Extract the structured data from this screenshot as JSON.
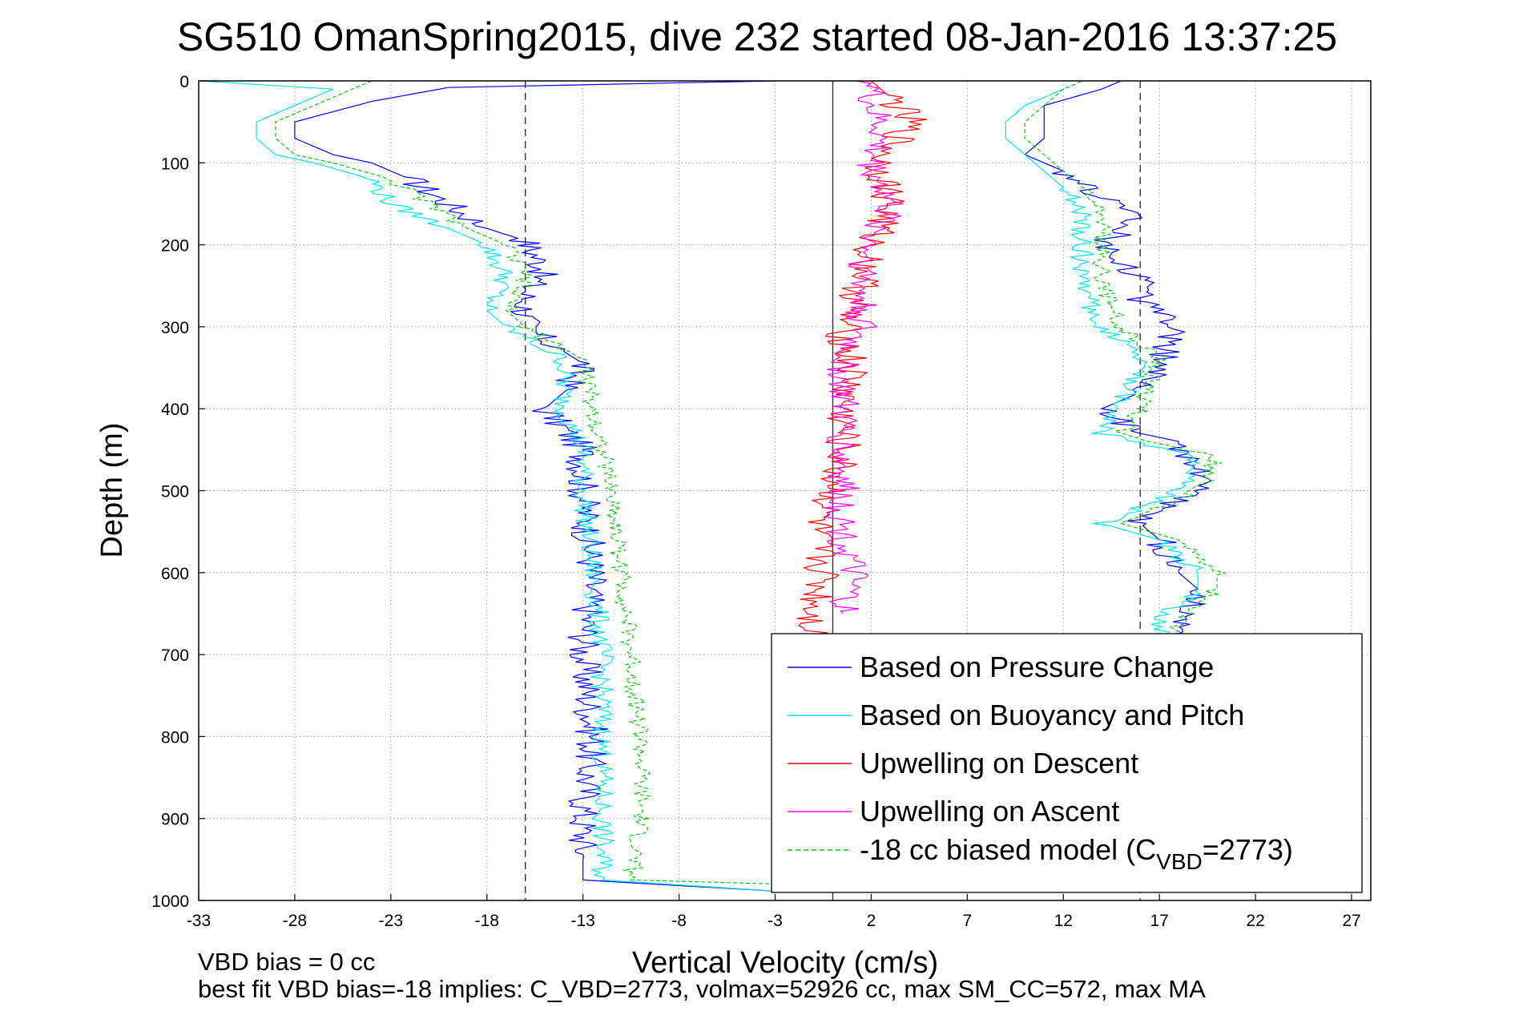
{
  "chart_data": {
    "type": "line",
    "title": "SG510 OmanSpring2015, dive 232 started 08-Jan-2016 13:37:25",
    "xlabel": "Vertical Velocity (cm/s)",
    "ylabel": "Depth (m)",
    "xlim": [
      -33,
      28
    ],
    "ylim": [
      1000,
      0
    ],
    "y_reversed": true,
    "grid": true,
    "x_ticks": [
      "-33",
      "-28",
      "-23",
      "-18",
      "-13",
      "-8",
      "-3",
      "2",
      "7",
      "12",
      "17",
      "22",
      "27"
    ],
    "x_tick_values": [
      -33,
      -28,
      -23,
      -18,
      -13,
      -8,
      -3,
      2,
      7,
      12,
      17,
      22,
      27
    ],
    "y_ticks": [
      "0",
      "100",
      "200",
      "300",
      "400",
      "500",
      "600",
      "700",
      "800",
      "900",
      "1000"
    ],
    "y_tick_values": [
      0,
      100,
      200,
      300,
      400,
      500,
      600,
      700,
      800,
      900,
      1000
    ],
    "reference_lines": [
      {
        "x": -16,
        "style": "dashed"
      },
      {
        "x": 0,
        "style": "solid"
      },
      {
        "x": 16,
        "style": "dashed"
      }
    ],
    "legend_position": "bottom-right",
    "legend": [
      {
        "label": "Based on Pressure Change",
        "color": "#0000ff",
        "dash": false
      },
      {
        "label": "Based on Buoyancy and Pitch",
        "color": "#00e5ee",
        "dash": false
      },
      {
        "label": "Upwelling on Descent",
        "color": "#ff0000",
        "dash": false
      },
      {
        "label": "Upwelling on Ascent",
        "color": "#ff00ff",
        "dash": false
      },
      {
        "label": "-18 cc biased model (C",
        "sub": "VBD",
        "suffix": "=2773)",
        "color": "#00cc00",
        "dash": true
      }
    ],
    "series": [
      {
        "name": "Based on Pressure Change",
        "color": "#0000ff",
        "depth": [
          0,
          8,
          25,
          50,
          70,
          90,
          100,
          120,
          150,
          180,
          195,
          230,
          260,
          300,
          330,
          345,
          380,
          400,
          450,
          500,
          600,
          700,
          800,
          900,
          950,
          975,
          990
        ],
        "values": [
          -3,
          -20,
          -24,
          -28,
          -28,
          -26,
          -24,
          -22,
          -20,
          -18,
          -16,
          -15,
          -16,
          -16,
          -14,
          -13,
          -14,
          -15,
          -13,
          -13,
          -12.5,
          -13,
          -12.5,
          -13,
          -13,
          -13,
          -2
        ]
      },
      {
        "name": "Based on Pressure Change",
        "color": "#0000ff",
        "depth": [
          990,
          985,
          970,
          950,
          900,
          800,
          700,
          660,
          620,
          600,
          560,
          540,
          500,
          470,
          440,
          430,
          400,
          380,
          340,
          300,
          270,
          240,
          200,
          170,
          140,
          110,
          90,
          70,
          50,
          30,
          10,
          0
        ],
        "values": [
          13,
          17,
          17,
          18,
          18,
          18,
          18,
          18,
          19,
          18,
          17,
          16,
          19,
          19,
          18,
          16,
          14,
          16,
          17,
          18,
          16,
          16,
          14,
          16,
          14,
          12,
          10,
          11,
          11,
          11,
          14,
          15
        ]
      },
      {
        "name": "Based on Buoyancy and Pitch",
        "color": "#00e5ee",
        "depth": [
          0,
          10,
          30,
          50,
          70,
          90,
          100,
          120,
          150,
          180,
          200,
          240,
          280,
          300,
          340,
          400,
          450,
          500,
          600,
          700,
          800,
          900,
          975,
          990
        ],
        "values": [
          -33,
          -26,
          -28,
          -30,
          -30,
          -29,
          -27,
          -24,
          -23,
          -20,
          -18,
          -17,
          -18,
          -17,
          -14,
          -14,
          -13,
          -13,
          -12.5,
          -12,
          -12,
          -12,
          -12,
          -2
        ]
      },
      {
        "name": "Based on Buoyancy and Pitch",
        "color": "#00e5ee",
        "depth": [
          990,
          970,
          900,
          800,
          700,
          660,
          620,
          600,
          560,
          540,
          500,
          460,
          430,
          400,
          340,
          300,
          250,
          200,
          160,
          130,
          110,
          90,
          70,
          50,
          30,
          10
        ],
        "values": [
          13,
          17,
          17,
          17,
          17,
          17,
          19,
          19,
          17,
          14,
          18,
          19,
          14,
          15,
          16,
          14,
          13,
          13,
          13,
          12,
          11,
          10,
          9,
          9,
          10,
          12
        ]
      },
      {
        "name": "Upwelling on Descent",
        "color": "#ff0000",
        "depth": [
          0,
          20,
          50,
          100,
          150,
          200,
          250,
          300,
          350,
          400,
          450,
          500,
          550,
          600,
          650,
          700,
          800,
          900,
          980
        ],
        "values": [
          2,
          3,
          4,
          2.5,
          3,
          2,
          1.5,
          0.5,
          1,
          0.5,
          0.5,
          0,
          -1,
          -0.5,
          -1,
          -1,
          -1,
          -1,
          -0.5
        ]
      },
      {
        "name": "Upwelling on Ascent",
        "color": "#ff00ff",
        "depth": [
          0,
          30,
          60,
          100,
          150,
          200,
          250,
          300,
          340,
          400,
          450,
          500,
          550,
          600,
          650
        ],
        "values": [
          2,
          2,
          2.5,
          2,
          3,
          2,
          1.5,
          1.5,
          0.5,
          0.5,
          0.5,
          0.5,
          0.5,
          1,
          0.5
        ]
      },
      {
        "name": "-18 cc biased model (CVBD=2773)",
        "color": "#00cc00",
        "dash": true,
        "depth": [
          0,
          10,
          30,
          50,
          70,
          90,
          100,
          120,
          150,
          180,
          200,
          240,
          280,
          300,
          340,
          400,
          450,
          500,
          600,
          700,
          800,
          900,
          975,
          990
        ],
        "values": [
          -24,
          -25,
          -27,
          -29,
          -29,
          -28,
          -26,
          -23,
          -21,
          -19,
          -17,
          -16,
          -17,
          -16,
          -13,
          -12.5,
          -12,
          -11.5,
          -11,
          -10.5,
          -10,
          -10,
          -10.5,
          13
        ]
      },
      {
        "name": "-18 cc biased model (CVBD=2773)",
        "color": "#00cc00",
        "dash": true,
        "depth": [
          990,
          970,
          900,
          800,
          700,
          660,
          620,
          600,
          560,
          540,
          500,
          460,
          430,
          400,
          340,
          300,
          250,
          200,
          160,
          130,
          110,
          90,
          70,
          50,
          30,
          10,
          0
        ],
        "values": [
          16,
          18,
          18,
          18,
          18,
          18,
          20,
          20,
          18,
          15,
          19,
          20,
          15,
          16,
          17,
          15,
          14,
          14,
          14,
          13,
          12,
          11,
          10,
          10,
          11,
          12,
          13
        ]
      }
    ]
  },
  "footer": {
    "line1": "VBD bias = 0 cc",
    "line2": "best fit VBD bias=-18 implies: C_VBD=2773, volmax=52926 cc, max SM_CC=572, max MA"
  }
}
